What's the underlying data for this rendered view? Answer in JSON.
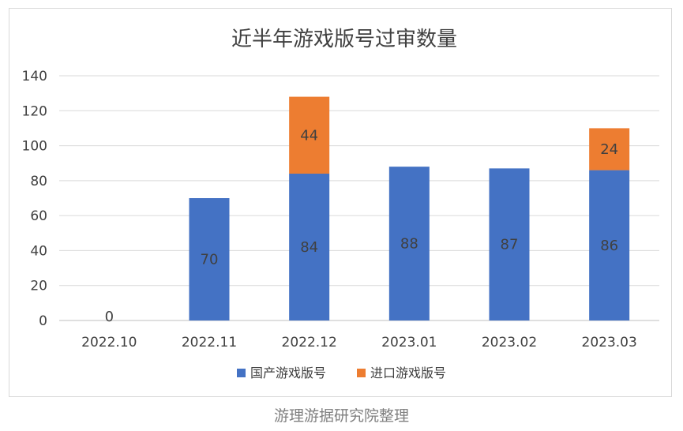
{
  "footer": {
    "credit": "游理游据研究院整理"
  },
  "colors": {
    "domestic": "#4472c4",
    "imported": "#ed7d31",
    "grid": "#d9d9d9",
    "axis": "#bfbfbf",
    "text": "#404040",
    "title": "#404040"
  },
  "chart_data": {
    "type": "bar",
    "stacked": true,
    "title": "近半年游戏版号过审数量",
    "categories": [
      "2022.10",
      "2022.11",
      "2022.12",
      "2023.01",
      "2023.02",
      "2023.03"
    ],
    "series": [
      {
        "name": "国产游戏版号",
        "values": [
          0,
          70,
          84,
          88,
          87,
          86
        ]
      },
      {
        "name": "进口游戏版号",
        "values": [
          0,
          0,
          44,
          0,
          0,
          24
        ]
      }
    ],
    "data_labels": [
      [
        "0",
        "70",
        "84",
        "88",
        "87",
        "86"
      ],
      [
        "",
        "",
        "44",
        "",
        "",
        "24"
      ]
    ],
    "yticks": [
      "0",
      "20",
      "40",
      "60",
      "80",
      "100",
      "120",
      "140"
    ],
    "ylim": [
      0,
      140
    ],
    "grid": true,
    "legend_position": "bottom"
  }
}
